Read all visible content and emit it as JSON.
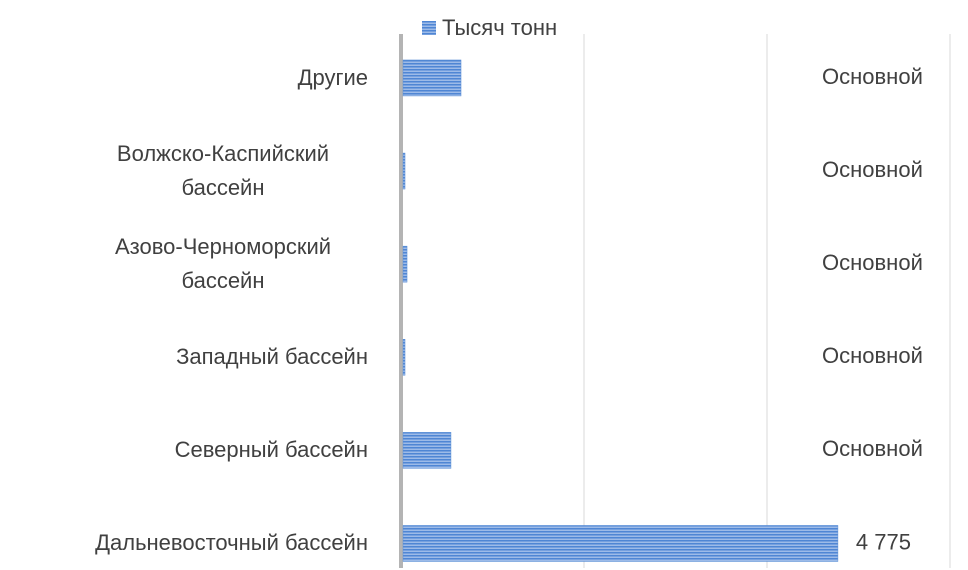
{
  "chart_data": {
    "type": "barh",
    "categories": [
      "Другие",
      "Волжско-Каспийский бассейн",
      "Азово-Черноморский бассейн",
      "Западный бассейн",
      "Северный бассейн",
      "Дальневосточный бассейн"
    ],
    "series": [
      {
        "name": "Тысяч тонн",
        "color": "#5b8fd6",
        "values": [
          656,
          44,
          66,
          44,
          546,
          4775
        ],
        "value_labels": [
          "Основной",
          "Основной",
          "Основной",
          "Основной",
          "Основной",
          "4 775"
        ]
      }
    ],
    "xlim": [
      0,
      6000
    ],
    "xticks": [
      0,
      2000,
      4000,
      6000
    ],
    "grid": true,
    "legend": "top"
  }
}
